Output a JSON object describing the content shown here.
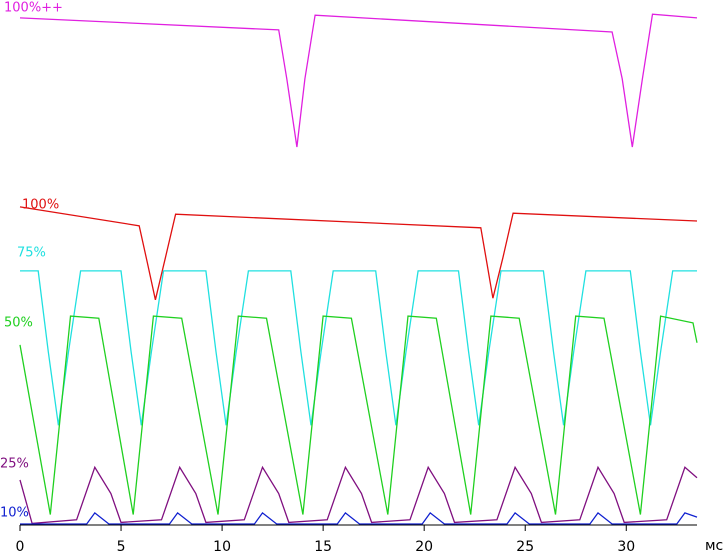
{
  "chart_data": {
    "type": "line",
    "xlabel": "мс",
    "xlim": [
      0,
      33.5
    ],
    "ylim": [
      0,
      100
    ],
    "xticks": [
      0,
      5,
      10,
      15,
      20,
      25,
      30
    ],
    "series": [
      {
        "name": "100%++",
        "color": "#e020e0",
        "x": [
          0,
          12.8,
          13.2,
          13.7,
          14.1,
          14.6,
          29.3,
          29.8,
          30.3,
          30.8,
          31.3,
          33.5
        ],
        "values": [
          96.6,
          94.3,
          85,
          72,
          85,
          97.1,
          93.9,
          85,
          72,
          85,
          97.3,
          96.6
        ]
      },
      {
        "name": "100%",
        "color": "#e01010",
        "x": [
          0,
          5.9,
          6.3,
          6.7,
          7.2,
          7.7,
          22.8,
          23.1,
          23.4,
          23.9,
          24.4,
          33.5
        ],
        "values": [
          60.6,
          57,
          50,
          42.9,
          51,
          59.2,
          56.6,
          50,
          43.2,
          51,
          59.4,
          57.9
        ]
      },
      {
        "name": "75%",
        "color": "#20e0e0",
        "x": [
          0,
          0.9,
          1.4,
          1.9,
          2.4,
          3.0,
          5.0,
          5.5,
          6.0,
          6.5,
          7.1,
          9.2,
          9.7,
          10.2,
          10.7,
          11.3,
          13.4,
          13.9,
          14.4,
          14.9,
          15.5,
          17.6,
          18.1,
          18.6,
          19.1,
          19.7,
          21.7,
          22.2,
          22.7,
          23.2,
          23.8,
          25.9,
          26.4,
          26.9,
          27.4,
          28.0,
          30.2,
          30.7,
          31.2,
          31.7,
          32.3,
          33.5
        ],
        "values": [
          48.4,
          48.4,
          33,
          19,
          33,
          48.4,
          48.4,
          33,
          19,
          33,
          48.4,
          48.4,
          33,
          19,
          33,
          48.4,
          48.4,
          33,
          19,
          33,
          48.4,
          48.4,
          33,
          19,
          33,
          48.4,
          48.4,
          33,
          19,
          33,
          48.4,
          48.4,
          33,
          19,
          33,
          48.4,
          48.4,
          33,
          19,
          33,
          48.4,
          48.4
        ]
      },
      {
        "name": "50%",
        "color": "#20d020",
        "x": [
          0,
          1.5,
          2.5,
          3.9,
          5.6,
          6.6,
          8.0,
          9.8,
          10.8,
          12.2,
          14.0,
          15.0,
          16.4,
          18.2,
          19.2,
          20.6,
          22.3,
          23.3,
          24.7,
          26.5,
          27.5,
          28.9,
          30.7,
          31.7,
          33.3,
          33.5
        ],
        "values": [
          34.3,
          2,
          39.8,
          39.4,
          2,
          39.8,
          39.4,
          2,
          39.8,
          39.4,
          2,
          39.8,
          39.4,
          2,
          39.8,
          39.4,
          2,
          39.8,
          39.4,
          2,
          39.8,
          39.4,
          2,
          39.8,
          38.5,
          34.7
        ]
      },
      {
        "name": "25%",
        "color": "#801080",
        "x": [
          0,
          0.6,
          2.8,
          3.7,
          4.5,
          5.0,
          7.0,
          7.9,
          8.7,
          9.2,
          11.1,
          12.0,
          12.8,
          13.3,
          15.2,
          16.1,
          16.9,
          17.4,
          19.3,
          20.2,
          21.0,
          21.5,
          23.6,
          24.5,
          25.3,
          25.8,
          27.7,
          28.6,
          29.4,
          29.9,
          32.0,
          32.9,
          33.5
        ],
        "values": [
          8.6,
          0.3,
          1,
          11,
          6,
          0.5,
          1,
          11,
          6,
          0.5,
          1,
          11,
          6,
          0.5,
          1,
          11,
          6,
          0.5,
          1,
          11,
          6,
          0.5,
          1,
          11,
          6,
          0.5,
          1,
          11,
          6,
          0.5,
          1,
          11,
          9
        ]
      },
      {
        "name": "10%",
        "color": "#1020d0",
        "x": [
          0,
          3.3,
          3.7,
          4.4,
          7.4,
          7.8,
          8.5,
          11.6,
          12.0,
          12.7,
          15.7,
          16.1,
          16.8,
          19.9,
          20.3,
          21.0,
          24.1,
          24.5,
          25.2,
          28.2,
          28.6,
          29.3,
          32.5,
          32.9,
          33.5
        ],
        "values": [
          0.2,
          0.2,
          2.3,
          0.2,
          0.2,
          2.3,
          0.2,
          0.2,
          2.3,
          0.2,
          0.2,
          2.3,
          0.2,
          0.2,
          2.3,
          0.2,
          0.2,
          2.3,
          0.2,
          0.2,
          2.3,
          0.2,
          0.2,
          2.3,
          1.5
        ]
      }
    ]
  }
}
